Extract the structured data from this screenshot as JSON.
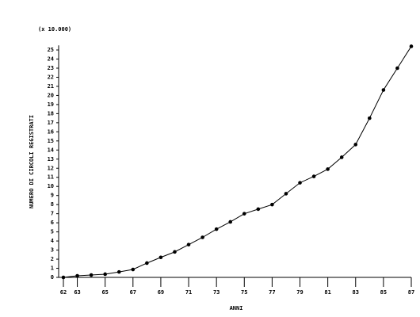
{
  "chart_data": {
    "type": "line",
    "title": "(x 10.000)",
    "y_label": "NUMERO DI CIRCOLI REGISTRATI",
    "x_label": "ANNI",
    "x": [
      62,
      63,
      64,
      65,
      66,
      67,
      68,
      69,
      70,
      71,
      72,
      73,
      74,
      75,
      76,
      77,
      78,
      79,
      80,
      81,
      82,
      83,
      84,
      85,
      86,
      87
    ],
    "values": [
      0,
      0.17,
      0.26,
      0.35,
      0.6,
      0.87,
      1.57,
      2.2,
      2.8,
      3.6,
      4.4,
      5.3,
      6.1,
      7.0,
      7.5,
      8.0,
      9.2,
      10.4,
      11.1,
      11.9,
      13.2,
      14.6,
      17.5,
      20.6,
      23.0,
      25.4
    ],
    "color": "#000000",
    "xlim": [
      62,
      87
    ],
    "xticks": [
      62,
      63,
      65,
      67,
      69,
      71,
      73,
      75,
      77,
      79,
      81,
      83,
      85,
      87
    ],
    "ylim": [
      0,
      25.5
    ],
    "yticks": [
      0,
      1,
      2,
      3,
      4,
      5,
      6,
      7,
      8,
      9,
      10,
      11,
      12,
      13,
      14,
      15,
      16,
      17,
      18,
      19,
      20,
      21,
      22,
      23,
      24,
      25
    ],
    "grid": false
  }
}
